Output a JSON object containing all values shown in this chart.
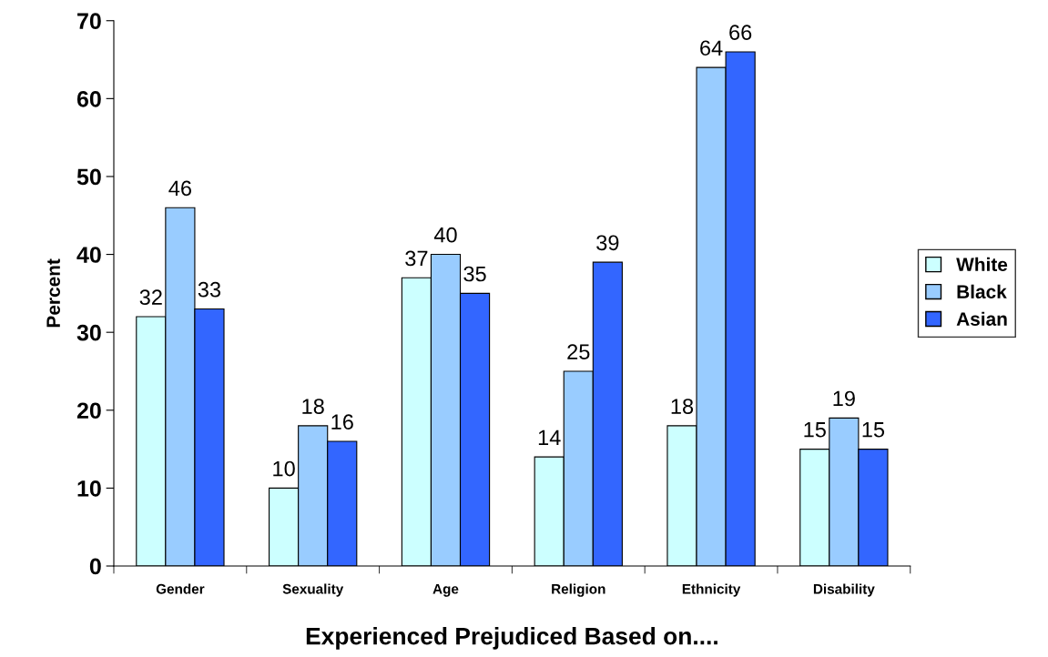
{
  "chart_data": {
    "type": "bar",
    "xlabel": "Experienced Prejudiced Based on....",
    "ylabel": "Percent",
    "categories": [
      "Gender",
      "Sexuality",
      "Age",
      "Religion",
      "Ethnicity",
      "Disability"
    ],
    "series": [
      {
        "name": "White",
        "color": "#ccffff",
        "values": [
          32,
          10,
          37,
          14,
          18,
          15
        ]
      },
      {
        "name": "Black",
        "color": "#99ccff",
        "values": [
          46,
          18,
          40,
          25,
          64,
          19
        ]
      },
      {
        "name": "Asian",
        "color": "#3366ff",
        "values": [
          33,
          16,
          35,
          39,
          66,
          15
        ]
      }
    ],
    "ylim": [
      0,
      70
    ],
    "yticks": [
      0,
      10,
      20,
      30,
      40,
      50,
      60,
      70
    ],
    "grid": false,
    "legend": "right",
    "data_labels": true
  }
}
